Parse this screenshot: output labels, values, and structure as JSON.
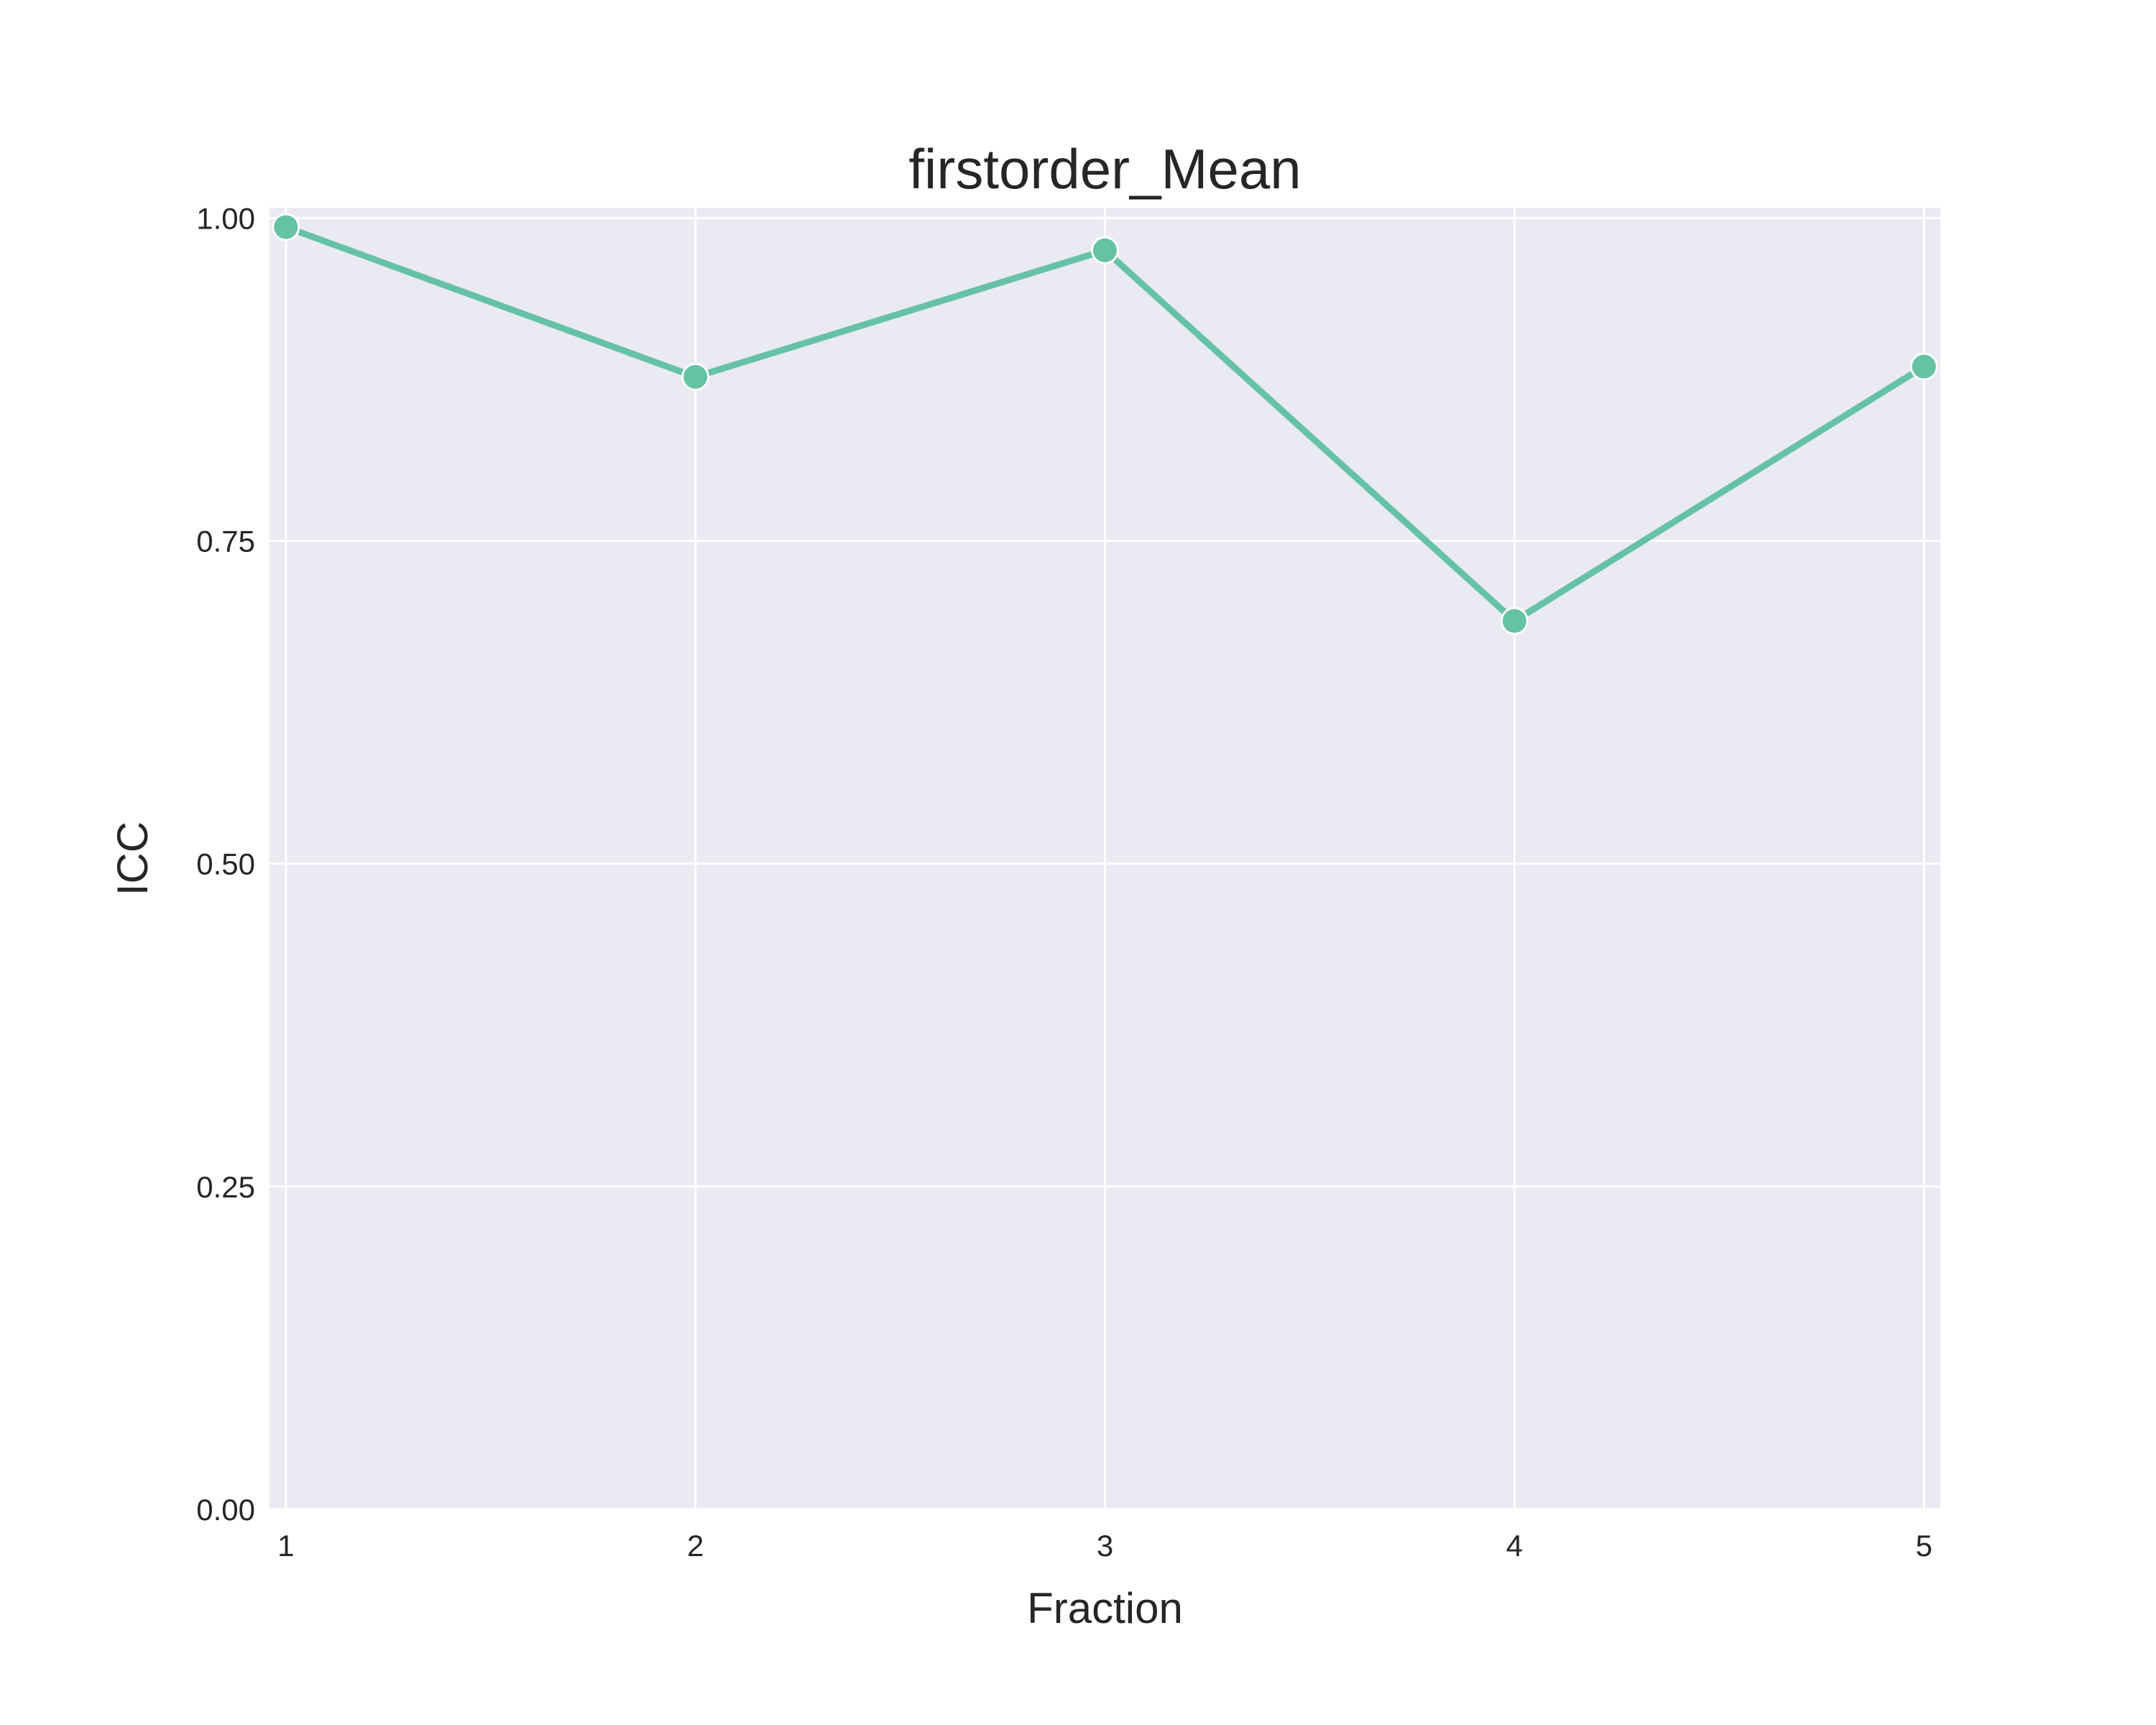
{
  "chart_data": {
    "type": "line",
    "title": "firstorder_Mean",
    "xlabel": "Fraction",
    "ylabel": "ICC",
    "x": [
      1,
      2,
      3,
      4,
      5
    ],
    "x_tick_labels": [
      "1",
      "2",
      "3",
      "4",
      "5"
    ],
    "y_tick_labels": [
      "0.00",
      "0.25",
      "0.50",
      "0.75",
      "1.00"
    ],
    "y_ticks": [
      0,
      0.25,
      0.5,
      0.75,
      1.0
    ],
    "xlim": [
      0.96,
      5.04
    ],
    "ylim": [
      0,
      1.008
    ],
    "series": [
      {
        "values": [
          0.993,
          0.877,
          0.975,
          0.688,
          0.885
        ],
        "color": "#66c2a5"
      }
    ],
    "grid": true,
    "background_color": "#eaeaf2",
    "grid_color": "#ffffff",
    "text_color": "#262626"
  }
}
